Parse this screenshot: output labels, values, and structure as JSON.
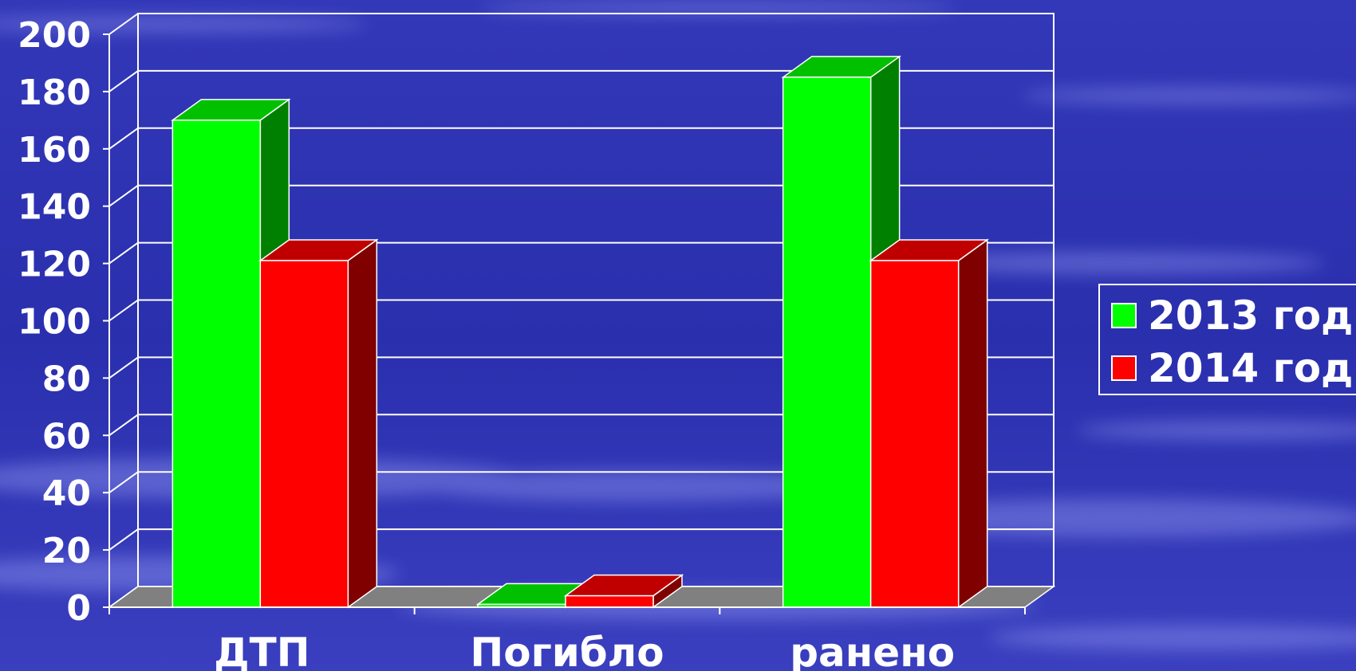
{
  "chart_data": {
    "type": "bar",
    "categories": [
      "ДТП",
      "Погибло",
      "ранено"
    ],
    "series": [
      {
        "name": "2013 год",
        "values": [
          170,
          1,
          185
        ]
      },
      {
        "name": "2014 год",
        "values": [
          121,
          4,
          121
        ]
      }
    ],
    "ylim": [
      0,
      200
    ],
    "yticks": [
      "0",
      "20",
      "40",
      "60",
      "80",
      "100",
      "120",
      "140",
      "160",
      "180",
      "200"
    ],
    "grid": true,
    "legend_position": "right",
    "three_d": true
  },
  "colors": {
    "background": "#2a2fae",
    "series_2013_front": "#00ff00",
    "series_2013_top": "#00c000",
    "series_2013_side": "#008000",
    "series_2014_front": "#ff0000",
    "series_2014_top": "#c00000",
    "series_2014_side": "#800000",
    "floor": "#808080",
    "text": "#ffffff"
  }
}
